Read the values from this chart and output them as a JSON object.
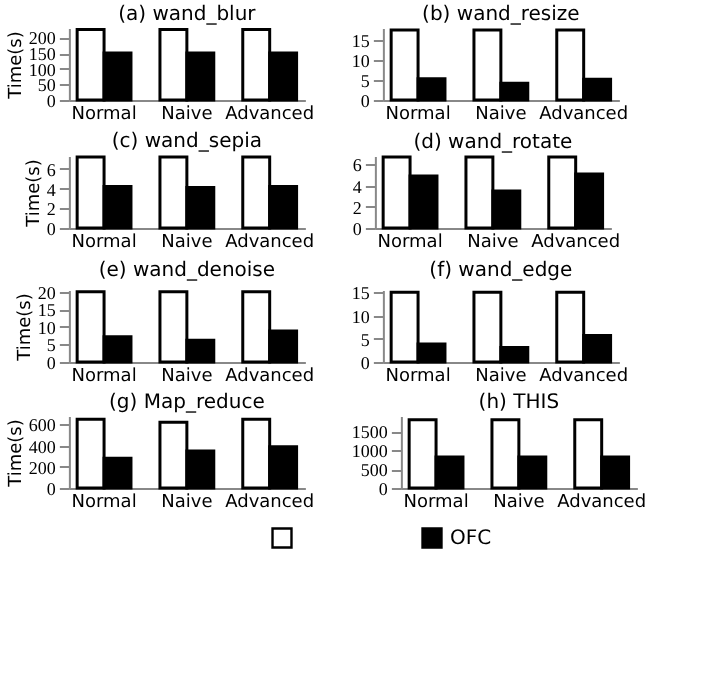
{
  "chart_data": [
    {
      "type": "bar",
      "title": "(a) wand_blur",
      "ylabel": "Time(s)",
      "categories": [
        "Normal",
        "Naive",
        "Advanced"
      ],
      "ylim": [
        0,
        230
      ],
      "yticks": [
        0,
        50,
        100,
        150,
        200
      ],
      "grid": false,
      "series": [
        {
          "color": "#ffffff",
          "values": [
            225,
            225,
            225
          ]
        },
        {
          "color": "#000000",
          "values": [
            150,
            150,
            150
          ]
        }
      ]
    },
    {
      "type": "bar",
      "title": "(b) wand_resize",
      "categories": [
        "Normal",
        "Naive",
        "Advanced"
      ],
      "ylim": [
        0,
        18
      ],
      "yticks": [
        0,
        5,
        10,
        15
      ],
      "grid": false,
      "series": [
        {
          "color": "#ffffff",
          "values": [
            17.5,
            17.5,
            17.5
          ]
        },
        {
          "color": "#000000",
          "values": [
            5.3,
            4.2,
            5.2
          ]
        }
      ]
    },
    {
      "type": "bar",
      "title": "(c) wand_sepia",
      "ylabel": "Time(s)",
      "categories": [
        "Normal",
        "Naive",
        "Advanced"
      ],
      "ylim": [
        0,
        7.3
      ],
      "yticks": [
        0,
        2,
        4,
        6
      ],
      "grid": false,
      "series": [
        {
          "color": "#ffffff",
          "values": [
            7.2,
            7.2,
            7.2
          ]
        },
        {
          "color": "#000000",
          "values": [
            4.2,
            4.1,
            4.2
          ]
        }
      ]
    },
    {
      "type": "bar",
      "title": "(d) wand_rotate",
      "categories": [
        "Normal",
        "Naive",
        "Advanced"
      ],
      "ylim": [
        0,
        6.8
      ],
      "yticks": [
        0,
        2,
        4,
        6
      ],
      "grid": false,
      "series": [
        {
          "color": "#ffffff",
          "values": [
            6.7,
            6.7,
            6.7
          ]
        },
        {
          "color": "#000000",
          "values": [
            4.9,
            3.5,
            5.1
          ]
        }
      ]
    },
    {
      "type": "bar",
      "title": "(e) wand_denoise",
      "ylabel": "Time(s)",
      "categories": [
        "Normal",
        "Naive",
        "Advanced"
      ],
      "ylim": [
        0,
        20.5
      ],
      "yticks": [
        0,
        5,
        10,
        15,
        20
      ],
      "grid": false,
      "series": [
        {
          "color": "#ffffff",
          "values": [
            20,
            20,
            20
          ]
        },
        {
          "color": "#000000",
          "values": [
            7.2,
            6.2,
            8.8
          ]
        }
      ]
    },
    {
      "type": "bar",
      "title": "(f) wand_edge",
      "categories": [
        "Normal",
        "Naive",
        "Advanced"
      ],
      "ylim": [
        0,
        15.5
      ],
      "yticks": [
        0,
        5,
        10,
        15
      ],
      "grid": false,
      "series": [
        {
          "color": "#ffffff",
          "values": [
            15,
            15,
            15
          ]
        },
        {
          "color": "#000000",
          "values": [
            3.9,
            3.1,
            5.7
          ]
        }
      ]
    },
    {
      "type": "bar",
      "title": "(g) Map_reduce",
      "ylabel": "Time(s)",
      "categories": [
        "Normal",
        "Naive",
        "Advanced"
      ],
      "ylim": [
        0,
        680
      ],
      "yticks": [
        0,
        200,
        400,
        600
      ],
      "grid": false,
      "series": [
        {
          "color": "#ffffff",
          "values": [
            650,
            620,
            650
          ]
        },
        {
          "color": "#000000",
          "values": [
            280,
            350,
            390
          ]
        }
      ]
    },
    {
      "type": "bar",
      "title": "(h) THIS",
      "categories": [
        "Normal",
        "Naive",
        "Advanced"
      ],
      "ylim": [
        0,
        1900
      ],
      "yticks": [
        0,
        500,
        1000,
        1500
      ],
      "grid": false,
      "legend": "bottom",
      "series": [
        {
          "color": "#ffffff",
          "values": [
            1800,
            1800,
            1800
          ]
        },
        {
          "name": "OFC",
          "color": "#000000",
          "values": [
            820,
            820,
            820
          ]
        }
      ]
    }
  ]
}
